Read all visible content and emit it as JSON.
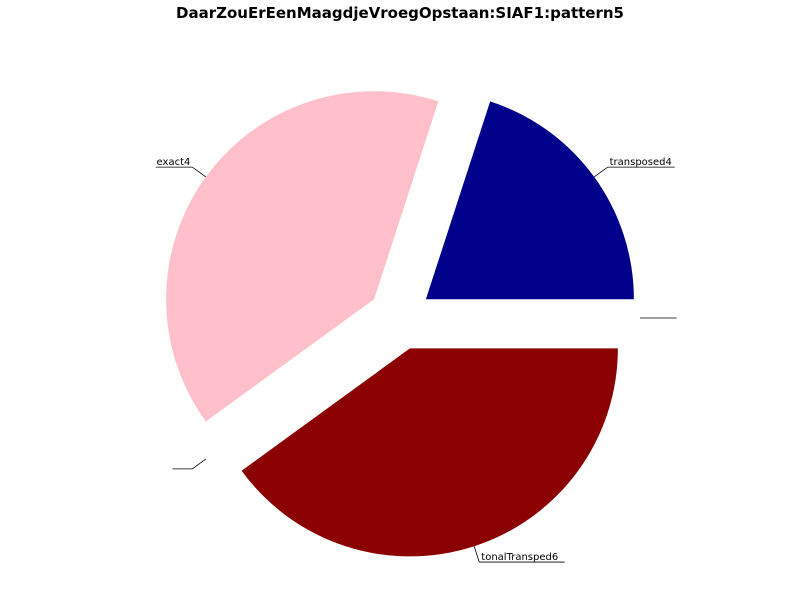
{
  "chart_data": {
    "type": "pie",
    "title": "DaarZouErEenMaagdjeVroegOpstaan:SIAF1:pattern5",
    "slices": [
      {
        "label": "transposed4",
        "value": 20,
        "color": "#00008b",
        "explode": true
      },
      {
        "label": "exact4",
        "value": 40,
        "color": "#ffc0cb",
        "explode": true
      },
      {
        "label": "",
        "value": 0.0001,
        "color": "#ffffff",
        "explode": true
      },
      {
        "label": "tonalTransped6",
        "value": 40,
        "color": "#8b0000",
        "explode": true
      },
      {
        "label": "",
        "value": 0.0001,
        "color": "#ffffff",
        "explode": true
      }
    ],
    "start_angle_deg": 0,
    "direction": "counterclockwise",
    "legend": "none"
  }
}
